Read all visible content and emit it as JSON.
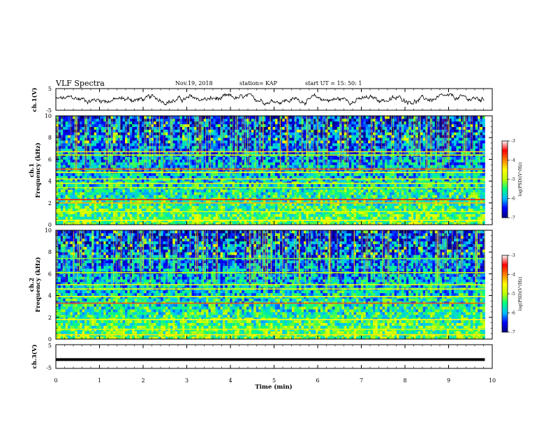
{
  "header": {
    "title": "VLF Spectra",
    "date": "Nov.19, 2018",
    "station": "station= KAP",
    "start": "start  UT =   15: 50: 1"
  },
  "chart_data": [
    {
      "type": "line",
      "panel": "ch1-waveform",
      "ylabel": "ch.1(V)",
      "ylim": [
        -5,
        5
      ],
      "yticks": [
        "5",
        "-5"
      ],
      "x_range_min": [
        0,
        9.83
      ],
      "description_level": "noisy trace oscillating around about 0 V, amplitude within roughly -2..+2 V",
      "color": "#000000"
    },
    {
      "type": "heatmap",
      "panel": "ch1-spectrogram",
      "ylabel_line1": "ch.1",
      "ylabel_line2": "Frequency (kHz)",
      "ylim": [
        0,
        10
      ],
      "yticks": [
        "0",
        "2",
        "4",
        "6",
        "8",
        "10"
      ],
      "x_range_min": [
        0,
        9.83
      ],
      "colorbar": {
        "label": "log(PSD)(V²/Hz)",
        "range": [
          -7,
          -3
        ],
        "ticks": [
          "-3",
          "-4",
          "-5",
          "-6",
          "-7"
        ],
        "colors": [
          "#00007f",
          "#0000ff",
          "#00bfff",
          "#00ff7f",
          "#bfff00",
          "#ffff00",
          "#ff7f00",
          "#ff0000",
          "#ffffff"
        ]
      },
      "bands_khz": [
        {
          "f": 0.4,
          "level": -4.5
        },
        {
          "f": 1.2,
          "level": -4.8
        },
        {
          "f": 2.0,
          "level": -4.2
        },
        {
          "f": 2.3,
          "level": -3.6
        },
        {
          "f": 3.4,
          "level": -5.0
        },
        {
          "f": 3.8,
          "level": -4.6
        },
        {
          "f": 4.2,
          "level": -4.4
        },
        {
          "f": 4.8,
          "level": -4.6
        },
        {
          "f": 5.1,
          "level": -3.9
        },
        {
          "f": 6.4,
          "level": -4.9
        },
        {
          "f": 6.7,
          "level": -4.4
        }
      ]
    },
    {
      "type": "heatmap",
      "panel": "ch2-spectrogram",
      "ylabel_line1": "ch.2",
      "ylabel_line2": "Frequency (kHz)",
      "ylim": [
        0,
        10
      ],
      "yticks": [
        "0",
        "2",
        "4",
        "6",
        "8",
        "10"
      ],
      "x_range_min": [
        0,
        9.83
      ],
      "colorbar": {
        "label": "log(PSD)(V²/Hz)",
        "range": [
          -7,
          -3
        ],
        "ticks": [
          "-3",
          "-4",
          "-5",
          "-6",
          "-7"
        ],
        "colors": [
          "#00007f",
          "#0000ff",
          "#00bfff",
          "#00ff7f",
          "#bfff00",
          "#ffff00",
          "#ff7f00",
          "#ff0000",
          "#ffffff"
        ]
      },
      "bands_khz": [
        {
          "f": 0.4,
          "level": -4.4
        },
        {
          "f": 0.9,
          "level": -4.8
        },
        {
          "f": 1.8,
          "level": -4.5
        },
        {
          "f": 3.3,
          "level": -3.8
        },
        {
          "f": 3.9,
          "level": -4.5
        },
        {
          "f": 4.6,
          "level": -4.6
        },
        {
          "f": 5.0,
          "level": -4.6
        },
        {
          "f": 6.1,
          "level": -5.0
        },
        {
          "f": 7.4,
          "level": -5.2
        }
      ]
    },
    {
      "type": "line",
      "panel": "ch3-waveform",
      "ylabel": "ch.3(V)",
      "ylim": [
        -5,
        5
      ],
      "yticks": [
        "5",
        "-5"
      ],
      "x_range_min": [
        0,
        9.83
      ],
      "constant_value": -1.3,
      "color": "#000000"
    }
  ],
  "xaxis": {
    "label": "Time (min)",
    "range": [
      0,
      10
    ],
    "ticks": [
      "0",
      "1",
      "2",
      "3",
      "4",
      "5",
      "6",
      "7",
      "8",
      "9",
      "10"
    ]
  }
}
